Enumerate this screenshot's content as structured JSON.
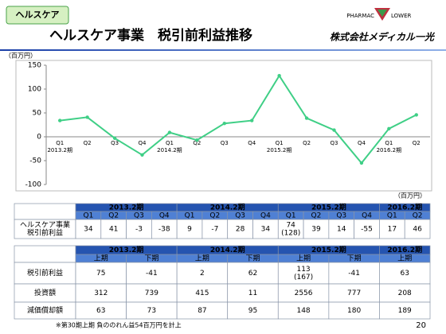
{
  "header": {
    "tab": "ヘルスケア",
    "title": "ヘルスケア事業　税引前利益推移",
    "logo_left": "PHARMAC",
    "logo_right": "LOWER",
    "company": "株式会社メディカル一光"
  },
  "chart_data": {
    "type": "line",
    "y_label": "（百万円）",
    "categories": [
      "Q1",
      "Q2",
      "Q3",
      "Q4",
      "Q1",
      "Q2",
      "Q3",
      "Q4",
      "Q1",
      "Q2",
      "Q3",
      "Q4",
      "Q1",
      "Q2"
    ],
    "category_groups": [
      "2013.2期",
      null,
      null,
      null,
      "2014.2期",
      null,
      null,
      null,
      "2015.2期",
      null,
      null,
      null,
      "2016.2期",
      null
    ],
    "series": [
      {
        "name": "税引前利益",
        "color": "#3fcf86",
        "values": [
          34,
          41,
          -3,
          -38,
          9,
          -7,
          28,
          34,
          128,
          39,
          14,
          -55,
          17,
          46
        ]
      }
    ],
    "ylim": [
      -100,
      150
    ],
    "yticks": [
      -100,
      -50,
      0,
      50,
      100,
      150
    ]
  },
  "table1": {
    "unit": "（百万円）",
    "periods": [
      "2013.2期",
      "2014.2期",
      "2015.2期",
      "2016.2期"
    ],
    "quarters": [
      [
        "Q1",
        "Q2",
        "Q3",
        "Q4"
      ],
      [
        "Q1",
        "Q2",
        "Q3",
        "Q4"
      ],
      [
        "Q1",
        "Q2",
        "Q3",
        "Q4"
      ],
      [
        "Q1",
        "Q2"
      ]
    ],
    "rows": [
      {
        "label": [
          "ヘルスケア事業",
          "税引前利益"
        ],
        "values": [
          34,
          41,
          -3,
          -38,
          9,
          -7,
          28,
          34,
          [
            74,
            "(128)"
          ],
          39,
          14,
          -55,
          17,
          46
        ]
      }
    ]
  },
  "table2": {
    "periods": [
      "2013.2期",
      "2014.2期",
      "2015.2期",
      "2016.2期"
    ],
    "halves": [
      [
        "上期",
        "下期"
      ],
      [
        "上期",
        "下期"
      ],
      [
        "上期",
        "下期"
      ],
      [
        "上期"
      ]
    ],
    "rows": [
      {
        "label": "税引前利益",
        "values": [
          75,
          -41,
          2,
          62,
          [
            113,
            "(167)"
          ],
          -41,
          63
        ]
      },
      {
        "label": "投資額",
        "values": [
          312,
          739,
          415,
          11,
          2556,
          777,
          208
        ]
      },
      {
        "label": "減価償却額",
        "values": [
          63,
          73,
          87,
          95,
          148,
          180,
          189
        ]
      }
    ]
  },
  "footnote": "※第30期上期 負ののれん益54百万円を計上",
  "page_number": "20"
}
